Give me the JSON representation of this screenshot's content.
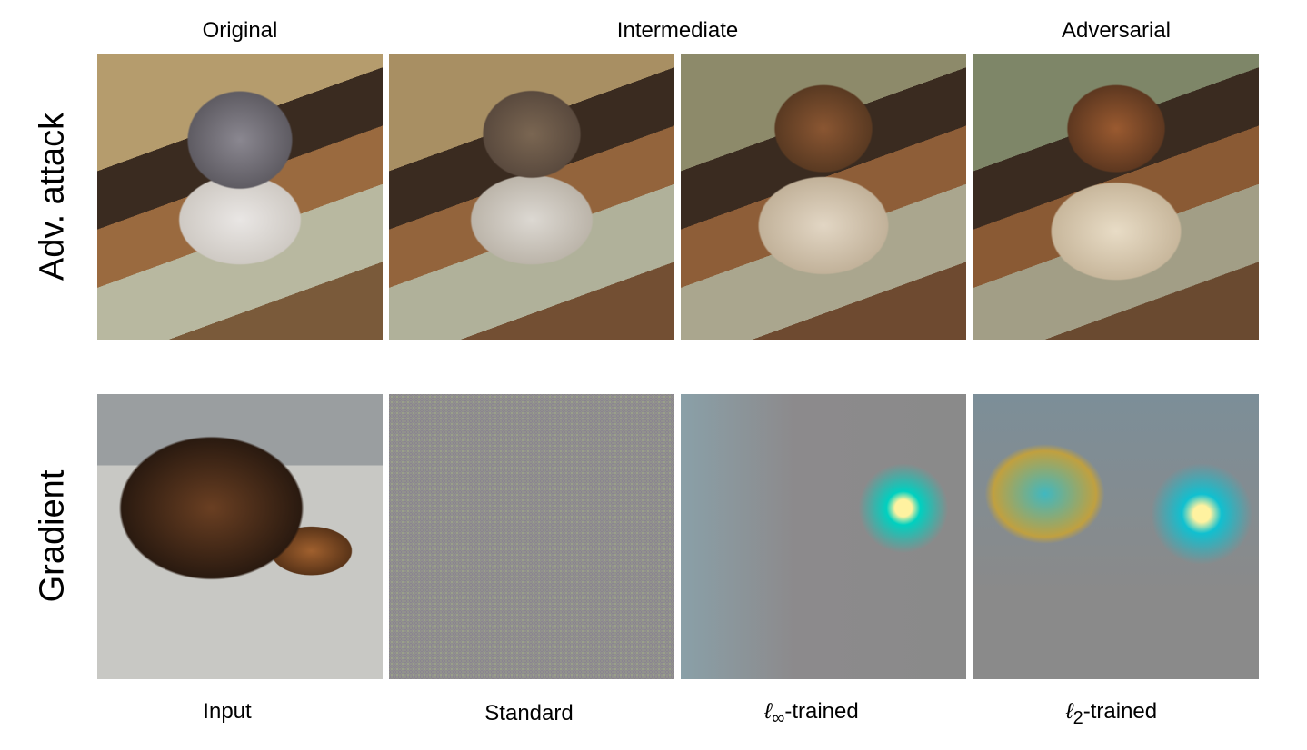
{
  "column_headers": [
    "Original",
    "Intermediate",
    "Adversarial"
  ],
  "row_labels": [
    "Adv. attack",
    "Gradient"
  ],
  "bottom_labels": {
    "input": "Input",
    "standard": "Standard",
    "linf_prefix": "ℓ",
    "linf_sub": "∞",
    "linf_suffix": "-trained",
    "l2_prefix": "ℓ",
    "l2_sub": "2",
    "l2_suffix": "-trained"
  }
}
